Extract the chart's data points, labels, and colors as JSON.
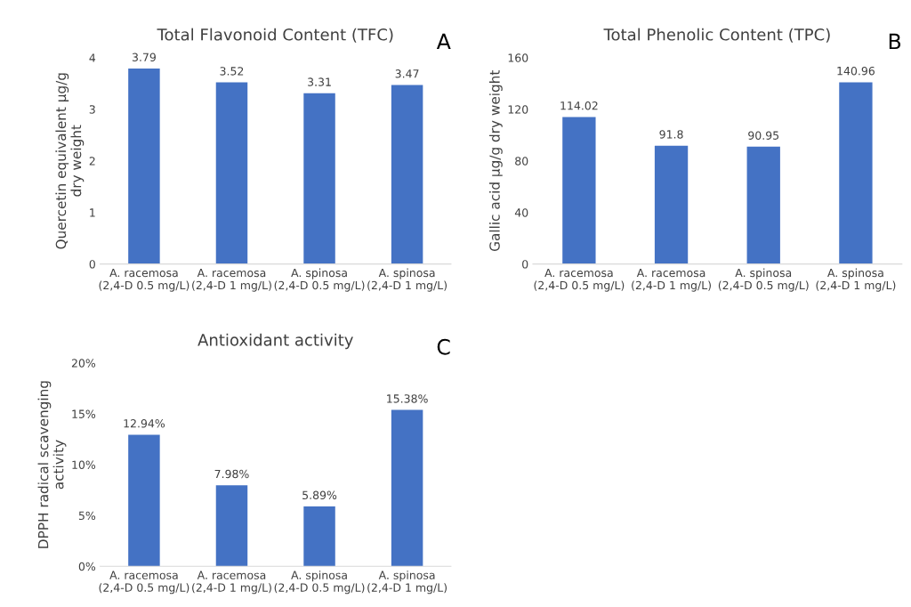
{
  "chart_data": [
    {
      "type": "bar",
      "title": "Total Flavonoid Content (TFC)",
      "ylabel": "Quercetin equivalent µg/g\ndry weight",
      "categories": [
        "A. racemosa\n(2,4-D 0.5 mg/L)",
        "A. racemosa\n(2,4-D 1 mg/L)",
        "A. spinosa\n(2,4-D 0.5 mg/L)",
        "A. spinosa\n(2,4-D 1 mg/L)"
      ],
      "series": [
        {
          "color": "#4472c4",
          "values": [
            3.79,
            3.52,
            3.31,
            3.47
          ]
        }
      ],
      "ylim": [
        0,
        4
      ],
      "yticks": [
        0,
        1,
        2,
        3,
        4
      ],
      "data_labels": true,
      "annotations": [
        "A"
      ]
    },
    {
      "type": "bar",
      "title": "Total Phenolic Content (TPC)",
      "ylabel": "Gallic acid µg/g dry weight",
      "categories": [
        "A. racemosa\n(2,4-D 0.5 mg/L)",
        "A. racemosa\n(2,4-D 1 mg/L)",
        "A. spinosa\n(2,4-D 0.5 mg/L)",
        "A. spinosa\n(2,4-D 1 mg/L)"
      ],
      "series": [
        {
          "color": "#4472c4",
          "values": [
            114.02,
            91.8,
            90.95,
            140.96
          ]
        }
      ],
      "ylim": [
        0,
        160
      ],
      "yticks": [
        0,
        40,
        80,
        120,
        160
      ],
      "data_labels": true,
      "annotations": [
        "B"
      ]
    },
    {
      "type": "bar",
      "title": "Antioxidant activity",
      "ylabel": "DPPH radical scavenging\nactivity",
      "categories": [
        "A. racemosa\n(2,4-D 0.5 mg/L)",
        "A. racemosa\n(2,4-D 1 mg/L)",
        "A. spinosa\n(2,4-D 0.5 mg/L)",
        "A. spinosa\n(2,4-D 1 mg/L)"
      ],
      "series": [
        {
          "color": "#4472c4",
          "values": [
            12.94,
            7.98,
            5.89,
            15.38
          ],
          "value_labels": [
            "12.94%",
            "7.98%",
            "5.89%",
            "15.38%"
          ]
        }
      ],
      "ylim": [
        0,
        20
      ],
      "yticks": [
        {
          "value": 0,
          "label": "0%"
        },
        {
          "value": 5,
          "label": "5%"
        },
        {
          "value": 10,
          "label": "10%"
        },
        {
          "value": 15,
          "label": "15%"
        },
        {
          "value": 20,
          "label": "20%"
        }
      ],
      "annotations": [
        "C"
      ]
    }
  ]
}
